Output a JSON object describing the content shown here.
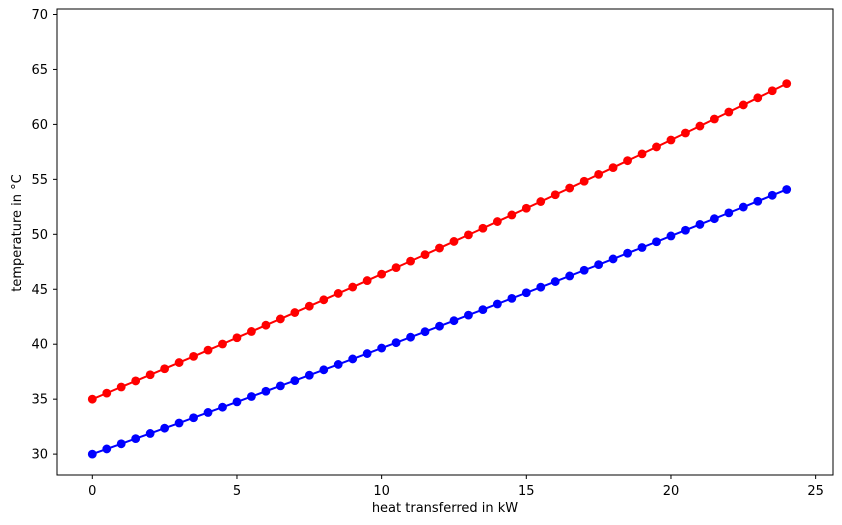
{
  "chart_data": {
    "type": "line",
    "title": "",
    "xlabel": "heat transferred in kW",
    "ylabel": "temperature in °C",
    "xlim": [
      -1.22,
      25.6
    ],
    "ylim": [
      28.1,
      70.5
    ],
    "xticks": [
      0,
      5,
      10,
      15,
      20,
      25
    ],
    "yticks": [
      30,
      35,
      40,
      45,
      50,
      55,
      60,
      65,
      70
    ],
    "grid": false,
    "legend": "none",
    "x_start": 0,
    "x_step": 0.5,
    "n_points": 49,
    "series": [
      {
        "color": "#ff0000",
        "marker": "circle",
        "y": [
          35.0,
          35.55,
          36.11,
          36.66,
          37.22,
          37.77,
          38.33,
          38.89,
          39.46,
          40.02,
          40.59,
          41.16,
          41.73,
          42.3,
          42.88,
          43.46,
          44.04,
          44.62,
          45.2,
          45.79,
          46.38,
          46.97,
          47.56,
          48.15,
          48.75,
          49.35,
          49.95,
          50.55,
          51.16,
          51.76,
          52.37,
          52.98,
          53.6,
          54.21,
          54.83,
          55.45,
          56.07,
          56.7,
          57.32,
          57.95,
          58.58,
          59.22,
          59.85,
          60.49,
          61.13,
          61.77,
          62.42,
          63.06,
          63.71
        ]
      },
      {
        "color": "#0000ff",
        "marker": "circle",
        "y": [
          30.0,
          30.47,
          30.94,
          31.41,
          31.88,
          32.36,
          32.83,
          33.31,
          33.79,
          34.27,
          34.75,
          35.24,
          35.72,
          36.21,
          36.69,
          37.18,
          37.67,
          38.16,
          38.66,
          39.15,
          39.65,
          40.14,
          40.64,
          41.14,
          41.64,
          42.14,
          42.65,
          43.15,
          43.66,
          44.17,
          44.68,
          45.19,
          45.7,
          46.21,
          46.73,
          47.24,
          47.76,
          48.28,
          48.8,
          49.32,
          49.85,
          50.37,
          50.9,
          51.42,
          51.95,
          52.48,
          53.01,
          53.55,
          54.08
        ]
      }
    ]
  }
}
